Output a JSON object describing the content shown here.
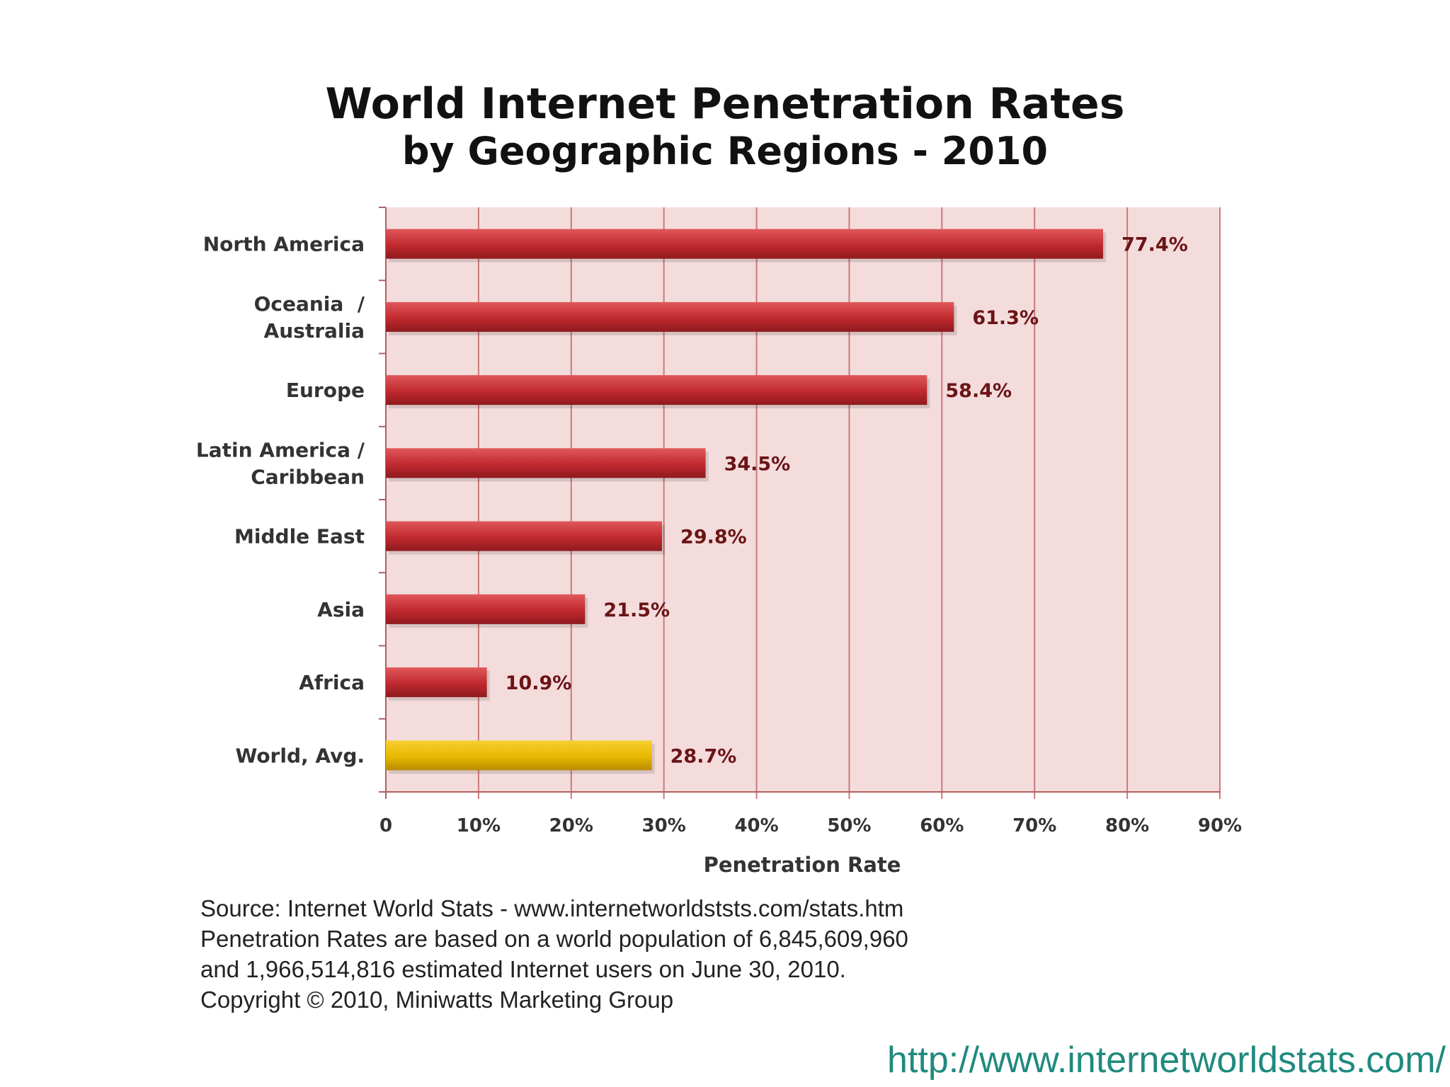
{
  "chart_data": {
    "type": "bar",
    "orientation": "horizontal",
    "title": "World Internet Penetration Rates",
    "subtitle": "by Geographic Regions - 2010",
    "xlabel": "Penetration Rate",
    "ylabel": "",
    "xlim": [
      0,
      90
    ],
    "xticks": [
      "0",
      "10%",
      "20%",
      "30%",
      "40%",
      "50%",
      "60%",
      "70%",
      "80%",
      "90%"
    ],
    "grid": true,
    "categories": [
      [
        "North America"
      ],
      [
        "Oceania  /",
        "Australia"
      ],
      [
        "Europe"
      ],
      [
        "Latin America /",
        "Caribbean"
      ],
      [
        "Middle East"
      ],
      [
        "Asia"
      ],
      [
        "Africa"
      ],
      [
        "World, Avg."
      ]
    ],
    "values": [
      77.4,
      61.3,
      58.4,
      34.5,
      29.8,
      21.5,
      10.9,
      28.7
    ],
    "value_labels": [
      "77.4%",
      "61.3%",
      "58.4%",
      "34.5%",
      "29.8%",
      "21.5%",
      "10.9%",
      "28.7%"
    ],
    "colors": {
      "bar": "#c0292e",
      "highlight_bar": "#e8b800",
      "plot_background": "#f4dcdc",
      "gridline": "#c97a7a",
      "value_label": "#6b1416"
    },
    "highlight_index": 7
  },
  "notes": [
    "Source: Internet World Stats - www.internetworldststs.com/stats.htm",
    "Penetration Rates are based on a world population of 6,845,609,960",
    "and 1,966,514,816 estimated Internet users on June 30, 2010.",
    "Copyright © 2010, Miniwatts Marketing Group"
  ],
  "url": "http://www.internetworldstats.com/"
}
